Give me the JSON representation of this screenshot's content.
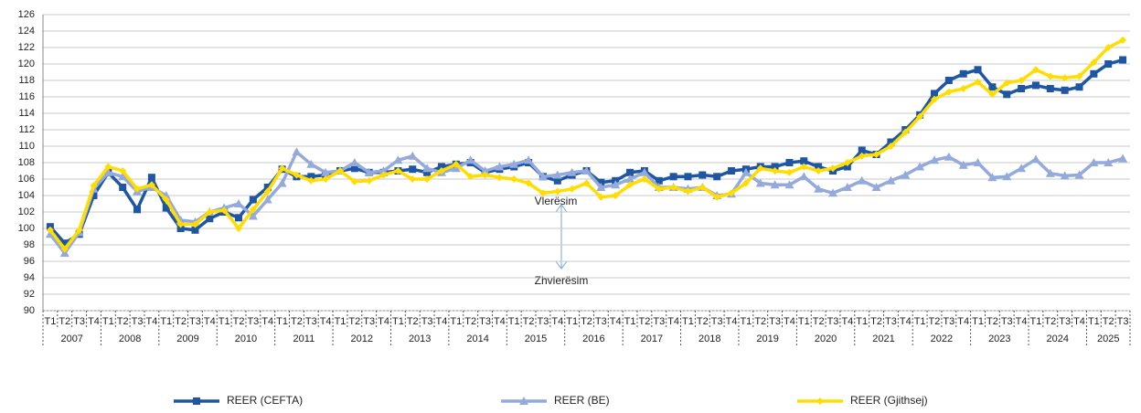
{
  "chart_data": {
    "type": "line",
    "categories": [
      "T1",
      "T2",
      "T3",
      "T4",
      "T1",
      "T2",
      "T3",
      "T4",
      "T1",
      "T2",
      "T3",
      "T4",
      "T1",
      "T2",
      "T3",
      "T4",
      "T1",
      "T2",
      "T3",
      "T4",
      "T1",
      "T2",
      "T3",
      "T4",
      "T1",
      "T2",
      "T3",
      "T4",
      "T1",
      "T2",
      "T3",
      "T4",
      "T1",
      "T2",
      "T3",
      "T4",
      "T1",
      "T2",
      "T3",
      "T4",
      "T1",
      "T2",
      "T3",
      "T4",
      "T1",
      "T2",
      "T3",
      "T4",
      "T1",
      "T2",
      "T3",
      "T4",
      "T1",
      "T2",
      "T3",
      "T4",
      "T1",
      "T2",
      "T3",
      "T4",
      "T1",
      "T2",
      "T3",
      "T4",
      "T1",
      "T2",
      "T3",
      "T4",
      "T1",
      "T2",
      "T3",
      "T4",
      "T1",
      "T2",
      "T3"
    ],
    "years": [
      "2007",
      "2008",
      "2009",
      "2010",
      "2011",
      "2012",
      "2013",
      "2014",
      "2015",
      "2016",
      "2017",
      "2018",
      "2019",
      "2020",
      "2021",
      "2022",
      "2023",
      "2024",
      "2025"
    ],
    "series": [
      {
        "name": "REER (CEFTA)",
        "color": "#1f56a3",
        "marker": "square",
        "values": [
          100.2,
          98.2,
          99.3,
          104.0,
          106.8,
          105.0,
          102.3,
          106.2,
          102.5,
          100.0,
          99.8,
          101.2,
          102.0,
          101.3,
          103.5,
          105.0,
          107.2,
          106.3,
          106.3,
          106.5,
          107.0,
          107.3,
          106.8,
          106.8,
          107.0,
          107.2,
          106.8,
          107.5,
          107.8,
          108.0,
          106.8,
          107.2,
          107.5,
          108.0,
          106.3,
          105.8,
          106.5,
          107.0,
          105.6,
          105.8,
          106.8,
          107.0,
          105.8,
          106.3,
          106.3,
          106.5,
          106.3,
          107.0,
          107.2,
          107.5,
          107.5,
          108.0,
          108.2,
          107.5,
          107.0,
          107.5,
          109.5,
          109.0,
          110.5,
          112.0,
          113.8,
          116.4,
          118.0,
          118.8,
          119.3,
          117.2,
          116.3,
          117.0,
          117.4,
          117.0,
          116.8,
          117.2,
          118.8,
          120.0,
          120.5
        ]
      },
      {
        "name": "REER (BE)",
        "color": "#94aadd",
        "marker": "triangle",
        "values": [
          99.3,
          97.0,
          99.5,
          104.8,
          106.8,
          106.3,
          104.5,
          105.0,
          104.0,
          101.0,
          100.8,
          102.0,
          102.5,
          103.0,
          101.5,
          103.5,
          105.5,
          109.3,
          107.8,
          106.8,
          107.0,
          108.0,
          106.8,
          107.0,
          108.3,
          108.8,
          107.3,
          106.8,
          107.3,
          108.3,
          107.0,
          107.5,
          107.8,
          108.3,
          106.3,
          106.5,
          106.8,
          107.0,
          105.0,
          105.3,
          106.0,
          106.8,
          105.0,
          105.0,
          104.8,
          105.0,
          104.0,
          104.2,
          106.8,
          105.5,
          105.3,
          105.3,
          106.3,
          104.8,
          104.3,
          105.0,
          105.8,
          105.0,
          105.8,
          106.5,
          107.5,
          108.3,
          108.7,
          107.7,
          108.0,
          106.2,
          106.3,
          107.3,
          108.4,
          106.7,
          106.4,
          106.5,
          108.0,
          108.0,
          108.5
        ]
      },
      {
        "name": "REER (Gjithsej)",
        "color": "#ffdd00",
        "marker": "diamond",
        "values": [
          99.8,
          97.5,
          99.8,
          105.2,
          107.5,
          107.0,
          104.8,
          105.3,
          103.5,
          100.5,
          100.5,
          102.0,
          102.2,
          100.0,
          102.3,
          104.5,
          107.3,
          106.5,
          105.8,
          106.0,
          107.0,
          105.7,
          105.8,
          106.5,
          107.0,
          106.0,
          106.0,
          107.0,
          107.8,
          106.3,
          106.5,
          106.2,
          106.0,
          105.5,
          104.3,
          104.5,
          104.8,
          105.5,
          103.8,
          104.0,
          105.3,
          106.0,
          104.8,
          105.0,
          104.5,
          105.0,
          103.8,
          104.3,
          105.5,
          107.3,
          107.0,
          106.8,
          107.5,
          107.0,
          107.3,
          108.0,
          108.8,
          109.0,
          110.0,
          111.7,
          113.6,
          115.7,
          116.6,
          117.0,
          117.8,
          116.3,
          117.7,
          118.0,
          119.3,
          118.5,
          118.3,
          118.5,
          120.2,
          122.0,
          122.9
        ]
      }
    ],
    "ylim": [
      90,
      126
    ],
    "yticks": [
      90,
      92,
      94,
      96,
      98,
      100,
      102,
      104,
      106,
      108,
      110,
      112,
      114,
      116,
      118,
      120,
      122,
      124,
      126
    ],
    "grid": true,
    "legend": "bottom",
    "annotations": [
      "Vlerësim",
      "Zhvlerësim"
    ]
  }
}
